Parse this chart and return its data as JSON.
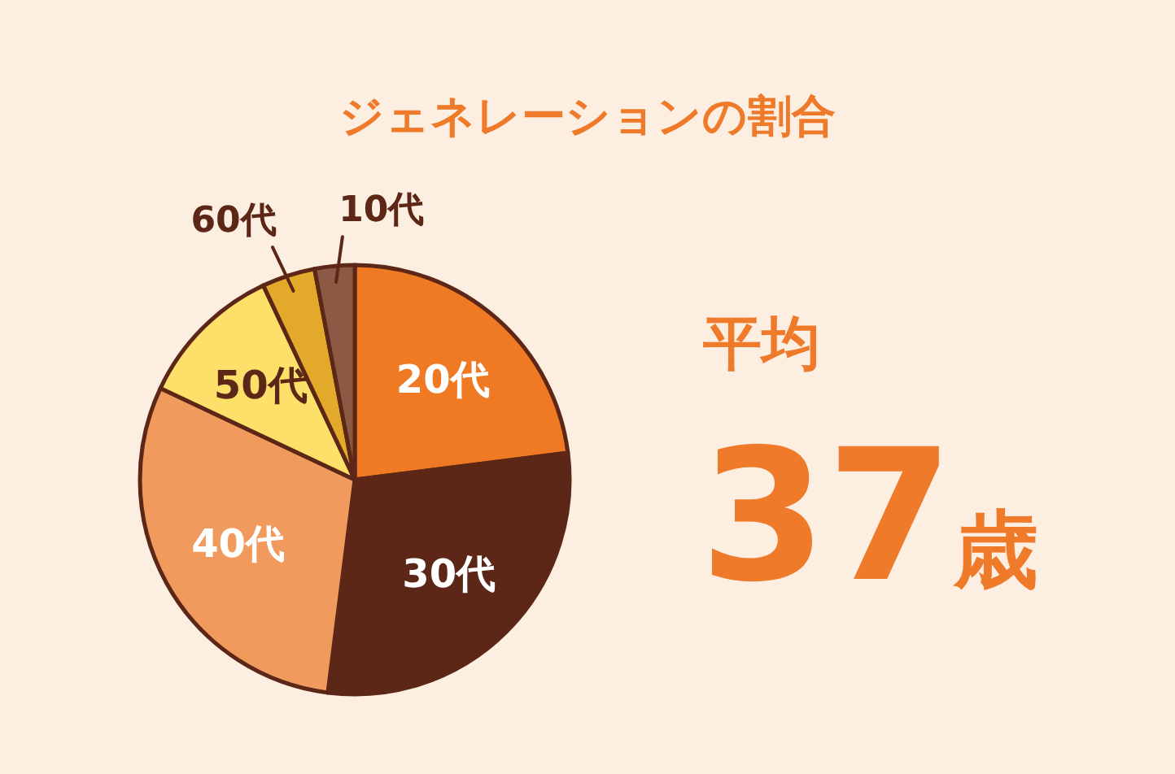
{
  "chart_data": {
    "type": "pie",
    "title": "ジェネレーションの割合",
    "categories": [
      "20代",
      "30代",
      "40代",
      "50代",
      "60代",
      "10代"
    ],
    "values": [
      23,
      29,
      30,
      11,
      4,
      3
    ],
    "colors": [
      "#f07a23",
      "#5c2716",
      "#f09a5e",
      "#fde06a",
      "#e3a92b",
      "#8c5a44"
    ],
    "annotations": [
      "平均",
      "37歳"
    ]
  }
}
